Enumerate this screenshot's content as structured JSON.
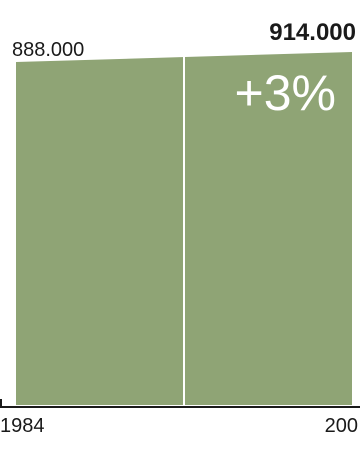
{
  "chart_data": {
    "type": "area",
    "x": [
      "1984",
      "200"
    ],
    "values": [
      888000,
      914000
    ],
    "value_labels": [
      "888.000",
      "914.000"
    ],
    "change_label": "+3%",
    "ylim": [
      0,
      914000
    ],
    "grid": false,
    "legend": "none"
  },
  "colors": {
    "fill": "#8fa475",
    "divider": "#ffffff",
    "axis": "#1a1a1a",
    "text": "#1a1a1a",
    "change_text": "#ffffff"
  }
}
